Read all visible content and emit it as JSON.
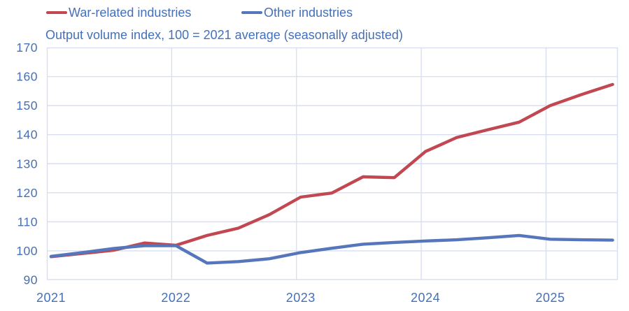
{
  "legend": {
    "items": [
      {
        "label": "War-related industries",
        "color": "#c14850"
      },
      {
        "label": "Other industries",
        "color": "#5576bb"
      }
    ]
  },
  "chart_data": {
    "type": "line",
    "title": "Output volume index, 100 = 2021 average (seasonally adjusted)",
    "x": [
      "2021 Q1",
      "2021 Q2",
      "2021 Q3",
      "2021 Q4",
      "2022 Q1",
      "2022 Q2",
      "2022 Q3",
      "2022 Q4",
      "2023 Q1",
      "2023 Q2",
      "2023 Q3",
      "2023 Q4",
      "2024 Q1",
      "2024 Q2",
      "2024 Q3",
      "2024 Q4",
      "2025 Q1",
      "2025 Q2",
      "2025 Q3"
    ],
    "x_tick_labels": [
      "2021",
      "2022",
      "2023",
      "2024",
      "2025"
    ],
    "y_tick_labels": [
      "90",
      "100",
      "110",
      "120",
      "130",
      "140",
      "150",
      "160",
      "170"
    ],
    "series": [
      {
        "name": "War-related industries",
        "color": "#c14850",
        "values": [
          98.0,
          99.1,
          100.2,
          102.7,
          101.9,
          105.3,
          107.8,
          112.5,
          118.5,
          119.9,
          125.5,
          125.2,
          134.2,
          139.0,
          141.7,
          144.3,
          150.0,
          153.8,
          157.3
        ]
      },
      {
        "name": "Other industries",
        "color": "#5576bb",
        "values": [
          98.1,
          99.4,
          100.8,
          101.8,
          101.8,
          95.8,
          96.3,
          97.3,
          99.4,
          100.9,
          102.3,
          102.9,
          103.4,
          103.8,
          104.5,
          105.3,
          104.0,
          103.8,
          103.7
        ]
      }
    ],
    "ylim": [
      90,
      170
    ],
    "y_tick_step": 10,
    "grid": true,
    "legend_position": "top",
    "text_color": "#4470ba",
    "grid_color": "#d9dff0",
    "background_color": "#ffffff"
  }
}
